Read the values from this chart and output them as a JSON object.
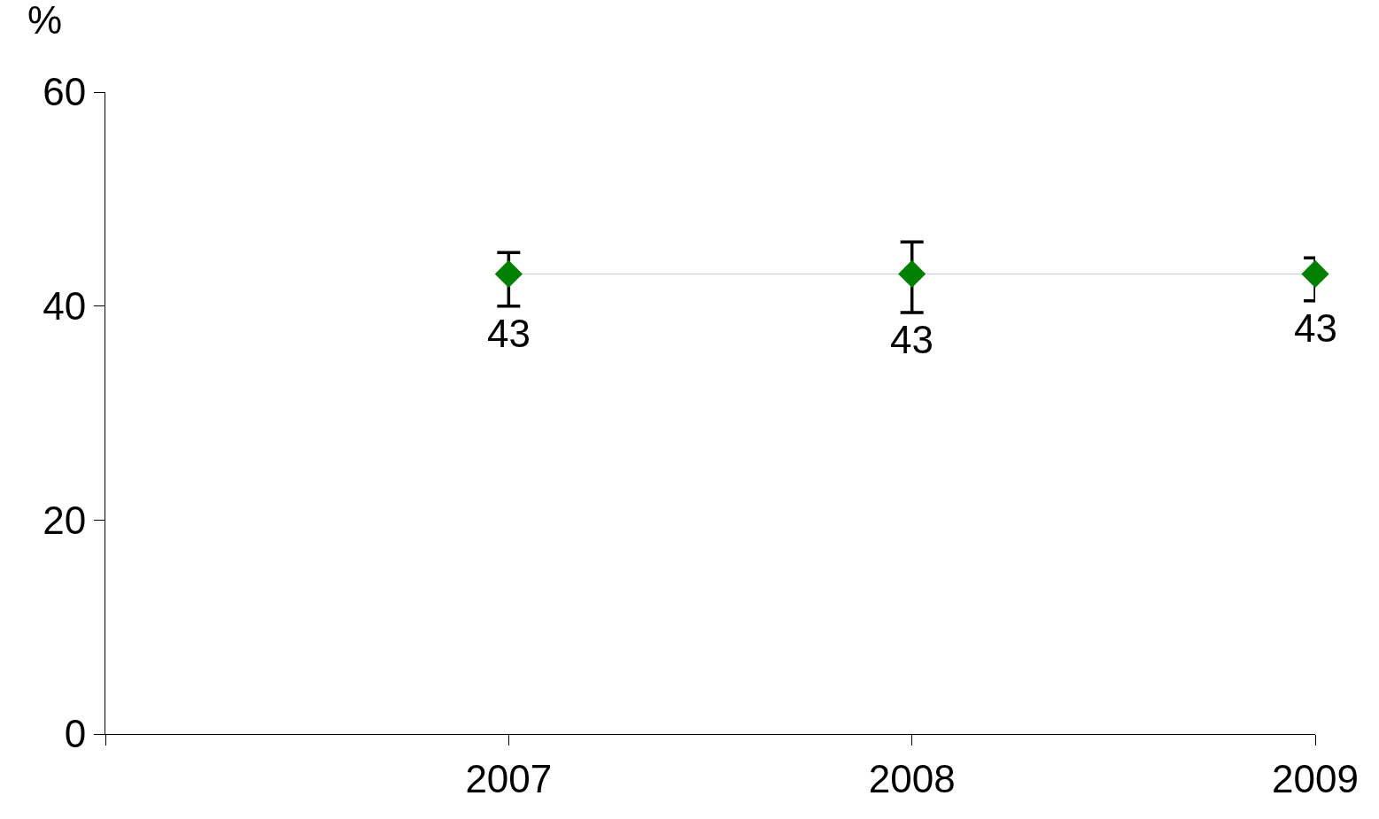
{
  "chart_data": {
    "type": "line",
    "ylabel": "%",
    "categories": [
      "2007",
      "2008",
      "2009"
    ],
    "series": [
      {
        "color": "#008000",
        "values": [
          43,
          43,
          43
        ],
        "errors": [
          [
            40,
            45
          ],
          [
            39.4,
            46
          ],
          [
            40.5,
            44.5
          ]
        ]
      }
    ],
    "ylim": [
      0,
      60
    ],
    "yticks": [
      0,
      20,
      40,
      60
    ],
    "grid": false,
    "marker": "diamond",
    "line_style": "solid",
    "data_labels": true
  }
}
